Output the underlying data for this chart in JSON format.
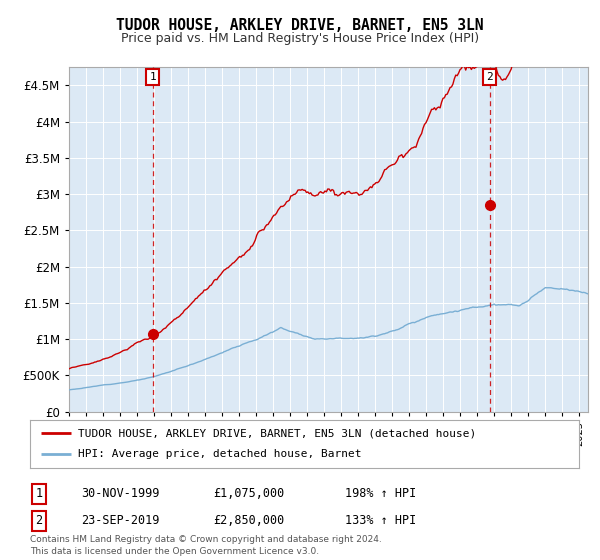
{
  "title": "TUDOR HOUSE, ARKLEY DRIVE, BARNET, EN5 3LN",
  "subtitle": "Price paid vs. HM Land Registry's House Price Index (HPI)",
  "background_color": "#dce9f5",
  "red_line_color": "#cc0000",
  "blue_line_color": "#7aafd4",
  "sale1_date": 1999.92,
  "sale1_price": 1075000,
  "sale2_date": 2019.73,
  "sale2_price": 2850000,
  "ylim_min": 0,
  "ylim_max": 4750000,
  "xlim_min": 1995.0,
  "xlim_max": 2025.5,
  "legend_line1": "TUDOR HOUSE, ARKLEY DRIVE, BARNET, EN5 3LN (detached house)",
  "legend_line2": "HPI: Average price, detached house, Barnet",
  "annotation1_date": "30-NOV-1999",
  "annotation1_price": "£1,075,000",
  "annotation1_pct": "198% ↑ HPI",
  "annotation2_date": "23-SEP-2019",
  "annotation2_price": "£2,850,000",
  "annotation2_pct": "133% ↑ HPI",
  "footer": "Contains HM Land Registry data © Crown copyright and database right 2024.\nThis data is licensed under the Open Government Licence v3.0."
}
